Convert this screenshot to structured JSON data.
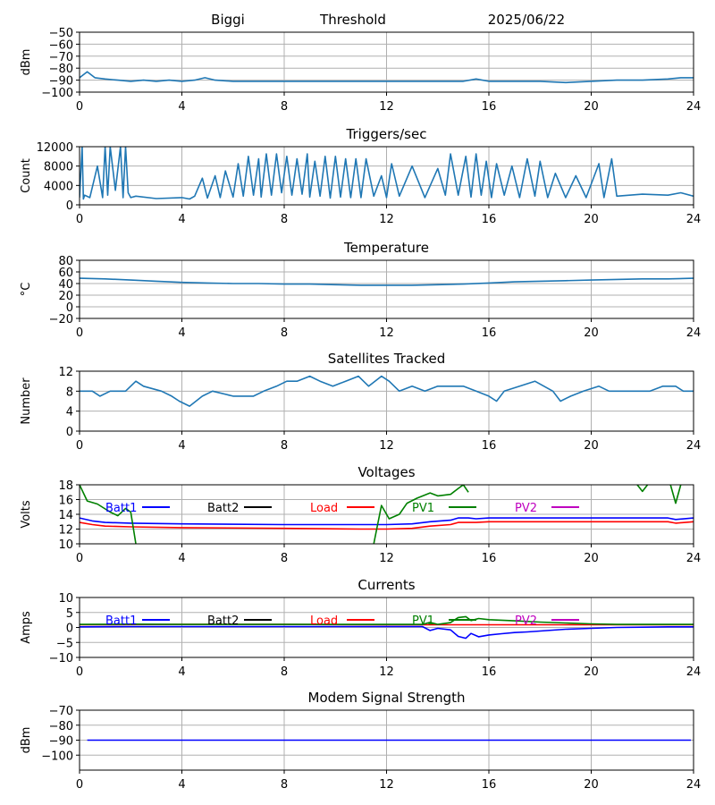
{
  "header": {
    "station": "Biggi",
    "mode": "Threshold",
    "date": "2025/06/22"
  },
  "colors": {
    "series": "#1f77b4",
    "grid": "#b0b0b0",
    "batt1": "#0000ff",
    "batt2": "#000000",
    "load": "#ff0000",
    "pv1": "#008000",
    "pv2": "#bf00bf"
  },
  "chart_data": [
    {
      "type": "line",
      "title": "",
      "ylabel": "dBm",
      "xlim": [
        0,
        24
      ],
      "ylim": [
        -100,
        -50
      ],
      "xticks": [
        0,
        4,
        8,
        12,
        16,
        20,
        24
      ],
      "yticks": [
        -100,
        -90,
        -80,
        -70,
        -60,
        -50
      ],
      "grid": true,
      "series": [
        {
          "color": "#1f77b4",
          "x": [
            0,
            0.3,
            0.6,
            1,
            1.5,
            2,
            2.5,
            3,
            3.5,
            4,
            4.5,
            4.9,
            5.3,
            6,
            7,
            8,
            9,
            10,
            11,
            12,
            13,
            14,
            15,
            15.5,
            16,
            17,
            18,
            19,
            20,
            21,
            22,
            23,
            23.5,
            24
          ],
          "y": [
            -88,
            -83,
            -88,
            -89,
            -90,
            -91,
            -90,
            -91,
            -90,
            -91,
            -90,
            -88,
            -90,
            -91,
            -91,
            -91,
            -91,
            -91,
            -91,
            -91,
            -91,
            -91,
            -91,
            -89,
            -91,
            -91,
            -91,
            -92,
            -91,
            -90,
            -90,
            -89,
            -88,
            -88
          ]
        }
      ]
    },
    {
      "type": "line",
      "title": "Triggers/sec",
      "ylabel": "Count",
      "xlim": [
        0,
        24
      ],
      "ylim": [
        0,
        12000
      ],
      "xticks": [
        0,
        4,
        8,
        12,
        16,
        20,
        24
      ],
      "yticks": [
        0,
        4000,
        8000,
        12000
      ],
      "grid": true,
      "series": [
        {
          "color": "#1f77b4",
          "x": [
            0,
            0.1,
            0.15,
            0.2,
            0.4,
            0.7,
            0.9,
            1.0,
            1.1,
            1.2,
            1.4,
            1.6,
            1.7,
            1.8,
            1.9,
            2.0,
            2.2,
            3,
            4,
            4.3,
            4.5,
            4.8,
            5,
            5.3,
            5.5,
            5.7,
            6,
            6.2,
            6.4,
            6.6,
            6.8,
            7,
            7.1,
            7.3,
            7.5,
            7.7,
            7.9,
            8.1,
            8.3,
            8.5,
            8.7,
            8.9,
            9.0,
            9.2,
            9.4,
            9.6,
            9.8,
            10,
            10.2,
            10.4,
            10.6,
            10.8,
            11,
            11.2,
            11.5,
            11.8,
            12,
            12.2,
            12.5,
            13,
            13.5,
            14,
            14.3,
            14.5,
            14.8,
            15.1,
            15.3,
            15.5,
            15.7,
            15.9,
            16.1,
            16.3,
            16.6,
            16.9,
            17.2,
            17.5,
            17.8,
            18,
            18.3,
            18.6,
            19,
            19.4,
            19.8,
            20.3,
            20.5,
            20.8,
            21,
            22,
            23,
            23.5,
            24
          ],
          "y": [
            1500,
            12000,
            1200,
            2000,
            1500,
            8000,
            1500,
            12000,
            2000,
            12000,
            3000,
            12000,
            1500,
            12000,
            2500,
            1500,
            1800,
            1300,
            1500,
            1200,
            1800,
            5500,
            1400,
            6000,
            1500,
            7000,
            1600,
            8500,
            1800,
            10000,
            2000,
            9500,
            1600,
            10500,
            2000,
            10500,
            2500,
            10000,
            2000,
            9500,
            2200,
            10500,
            1600,
            9000,
            1800,
            10000,
            1400,
            10000,
            1600,
            9500,
            1500,
            9500,
            1500,
            9500,
            1800,
            6000,
            1500,
            8500,
            1800,
            8000,
            1500,
            7500,
            2000,
            10500,
            2000,
            10000,
            1600,
            10500,
            2000,
            9000,
            1500,
            8500,
            2000,
            8000,
            1500,
            9500,
            1800,
            9000,
            1500,
            6500,
            1500,
            6000,
            1500,
            8500,
            1500,
            9500,
            1800,
            2200,
            2000,
            2500,
            1800
          ]
        }
      ]
    },
    {
      "type": "line",
      "title": "Temperature",
      "ylabel": "°C",
      "xlim": [
        0,
        24
      ],
      "ylim": [
        -20,
        80
      ],
      "xticks": [
        0,
        4,
        8,
        12,
        16,
        20,
        24
      ],
      "yticks": [
        -20,
        0,
        20,
        40,
        60,
        80
      ],
      "grid": true,
      "series": [
        {
          "color": "#1f77b4",
          "x": [
            0,
            1,
            2,
            3,
            4,
            5,
            6,
            7,
            8,
            9,
            10,
            11,
            12,
            13,
            14,
            15,
            16,
            17,
            18,
            19,
            20,
            21,
            22,
            23,
            24
          ],
          "y": [
            49,
            48,
            46,
            44,
            42,
            41,
            40,
            40,
            39,
            39,
            38,
            37,
            37,
            37,
            38,
            39,
            41,
            43,
            44,
            45,
            46,
            47,
            48,
            48,
            49
          ]
        }
      ]
    },
    {
      "type": "line",
      "title": "Satellites Tracked",
      "ylabel": "Number",
      "xlim": [
        0,
        24
      ],
      "ylim": [
        0,
        12
      ],
      "xticks": [
        0,
        4,
        8,
        12,
        16,
        20,
        24
      ],
      "yticks": [
        0,
        4,
        8,
        12
      ],
      "grid": true,
      "series": [
        {
          "color": "#1f77b4",
          "x": [
            0,
            0.5,
            0.8,
            1.2,
            1.8,
            2.2,
            2.5,
            3.2,
            3.6,
            3.9,
            4.3,
            4.8,
            5.2,
            6,
            6.8,
            7.2,
            7.7,
            8.1,
            8.5,
            9,
            9.4,
            9.9,
            10.4,
            10.9,
            11.3,
            11.8,
            12.1,
            12.5,
            13,
            13.5,
            14,
            14.5,
            15,
            15.5,
            16,
            16.3,
            16.6,
            17.2,
            17.8,
            18.5,
            18.8,
            19.2,
            19.7,
            20.3,
            20.7,
            21.2,
            21.8,
            22.3,
            22.8,
            23.3,
            23.6,
            24
          ],
          "y": [
            8,
            8,
            7,
            8,
            8,
            10,
            9,
            8,
            7,
            6,
            5,
            7,
            8,
            7,
            7,
            8,
            9,
            10,
            10,
            11,
            10,
            9,
            10,
            11,
            9,
            11,
            10,
            8,
            9,
            8,
            9,
            9,
            9,
            8,
            7,
            6,
            8,
            9,
            10,
            8,
            6,
            7,
            8,
            9,
            8,
            8,
            8,
            8,
            9,
            9,
            8,
            8
          ]
        }
      ]
    },
    {
      "type": "line",
      "title": "Voltages",
      "ylabel": "Volts",
      "xlim": [
        0,
        24
      ],
      "ylim": [
        10,
        18
      ],
      "xticks": [
        0,
        4,
        8,
        12,
        16,
        20,
        24
      ],
      "yticks": [
        10,
        12,
        14,
        16,
        18
      ],
      "grid": true,
      "legend": [
        "Batt1",
        "Batt2",
        "Load",
        "PV1",
        "PV2"
      ],
      "series": [
        {
          "name": "Batt1",
          "color": "#0000ff",
          "x": [
            0,
            0.5,
            1,
            2,
            4,
            8,
            12,
            13,
            13.7,
            14.5,
            14.8,
            15.2,
            15.5,
            16,
            20,
            23,
            23.3,
            24
          ],
          "y": [
            13.5,
            13.1,
            12.9,
            12.8,
            12.7,
            12.6,
            12.6,
            12.7,
            13.0,
            13.2,
            13.5,
            13.5,
            13.4,
            13.5,
            13.5,
            13.5,
            13.3,
            13.5
          ]
        },
        {
          "name": "Load",
          "color": "#ff0000",
          "x": [
            0,
            0.5,
            1,
            2,
            4,
            8,
            11,
            12,
            13,
            13.7,
            14.5,
            14.8,
            15.5,
            16,
            20,
            23,
            23.3,
            24
          ],
          "y": [
            12.9,
            12.6,
            12.4,
            12.3,
            12.2,
            12.1,
            12.0,
            12.0,
            12.1,
            12.4,
            12.6,
            12.9,
            12.9,
            13.0,
            13.0,
            13.0,
            12.8,
            13.0
          ]
        },
        {
          "name": "PV1",
          "color": "#008000",
          "x": [
            0,
            0.3,
            0.7,
            1.2,
            1.5,
            1.8,
            2.0,
            2.2
          ],
          "y": [
            18,
            15.8,
            15.4,
            14.3,
            13.8,
            14.8,
            14.3,
            10
          ]
        },
        {
          "name": "PV1",
          "color": "#008000",
          "x": [
            11.5,
            11.8,
            12.1,
            12.5,
            12.8,
            13.2,
            13.7,
            14.0,
            14.5,
            14.8,
            15.0,
            15.2
          ],
          "y": [
            10,
            15.2,
            13.4,
            14.0,
            15.5,
            16.2,
            16.9,
            16.5,
            16.7,
            17.5,
            18.0,
            17.0
          ]
        },
        {
          "name": "PV1",
          "color": "#008000",
          "x": [
            21.8,
            22.0,
            22.2
          ],
          "y": [
            18,
            17.1,
            18
          ]
        },
        {
          "name": "PV1",
          "color": "#008000",
          "x": [
            23.1,
            23.3,
            23.5
          ],
          "y": [
            18,
            15.5,
            18
          ]
        }
      ]
    },
    {
      "type": "line",
      "title": "Currents",
      "ylabel": "Amps",
      "xlim": [
        0,
        24
      ],
      "ylim": [
        -10,
        10
      ],
      "xticks": [
        0,
        4,
        8,
        12,
        16,
        20,
        24
      ],
      "yticks": [
        -10,
        -5,
        0,
        5,
        10
      ],
      "grid": true,
      "legend": [
        "Batt1",
        "Batt2",
        "Load",
        "PV1",
        "PV2"
      ],
      "series": [
        {
          "name": "Batt1",
          "color": "#0000ff",
          "x": [
            0,
            2,
            4,
            8,
            12,
            13.4,
            13.7,
            14.0,
            14.5,
            14.8,
            15.1,
            15.3,
            15.6,
            16,
            16.5,
            17,
            17.5,
            18,
            19,
            20,
            21,
            22,
            23,
            24
          ],
          "y": [
            0.2,
            0.3,
            0.3,
            0.3,
            0.3,
            0.3,
            -1.0,
            -0.3,
            -0.8,
            -3.0,
            -3.6,
            -2.0,
            -3.1,
            -2.5,
            -2.1,
            -1.7,
            -1.5,
            -1.2,
            -0.6,
            -0.3,
            0,
            0.1,
            0.2,
            0.2
          ]
        },
        {
          "name": "Load",
          "color": "#ff0000",
          "x": [
            0,
            4,
            8,
            12,
            16,
            20,
            24
          ],
          "y": [
            0.9,
            1.0,
            1.0,
            0.9,
            0.9,
            0.9,
            0.9
          ]
        },
        {
          "name": "PV1",
          "color": "#008000",
          "x": [
            0,
            2,
            4,
            8,
            12,
            13.4,
            13.7,
            14.0,
            14.5,
            14.8,
            15.1,
            15.3,
            15.6,
            16,
            17,
            18,
            19,
            20,
            21,
            22,
            23,
            24
          ],
          "y": [
            1.0,
            1.1,
            1.0,
            1.0,
            1.0,
            1.0,
            1.7,
            1.0,
            1.6,
            3.3,
            3.6,
            2.3,
            3.0,
            2.6,
            2.2,
            1.8,
            1.5,
            1.2,
            1.0,
            1.0,
            1.0,
            1.0
          ]
        }
      ]
    },
    {
      "type": "line",
      "title": "Modem Signal Strength",
      "ylabel": "dBm",
      "xlim": [
        0,
        24
      ],
      "ylim": [
        -110,
        -70
      ],
      "xticks": [
        0,
        4,
        8,
        12,
        16,
        20,
        24
      ],
      "yticks": [
        -100,
        -90,
        -80,
        -70
      ],
      "grid": true,
      "series": [
        {
          "color": "#0000ff",
          "x": [
            0.3,
            23.9
          ],
          "y": [
            -90,
            -90
          ]
        }
      ]
    }
  ]
}
